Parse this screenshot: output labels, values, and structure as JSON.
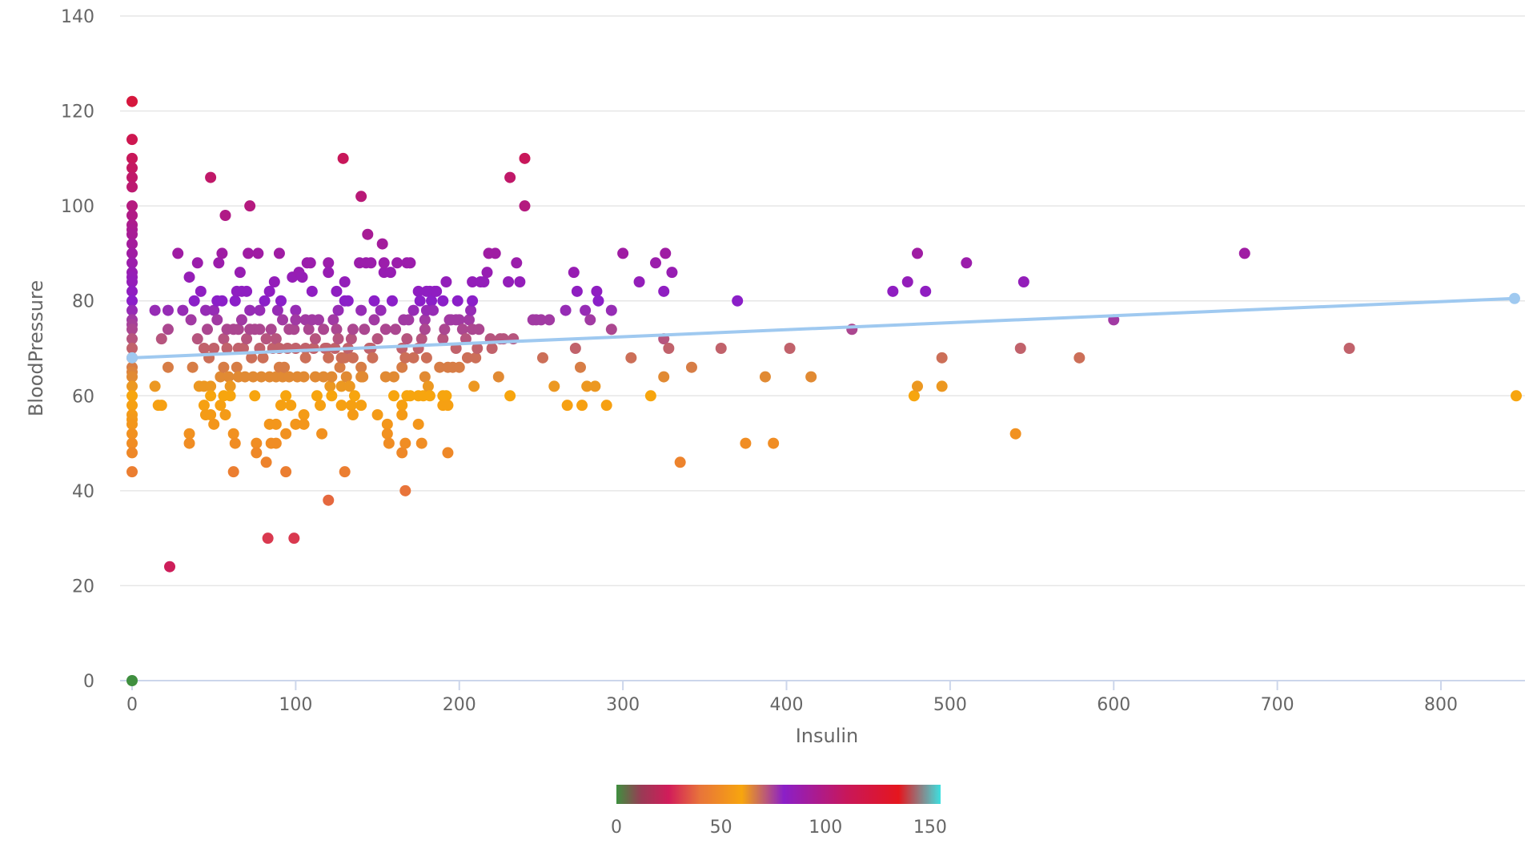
{
  "chart_data": {
    "type": "scatter",
    "xlabel": "Insulin",
    "ylabel": "BloodPressure",
    "xlim": [
      -10,
      850
    ],
    "ylim": [
      0,
      140
    ],
    "xticks": [
      0,
      100,
      200,
      300,
      400,
      500,
      600,
      700,
      800
    ],
    "yticks": [
      0,
      20,
      40,
      60,
      80,
      100,
      120,
      140
    ],
    "grid": true,
    "color_axis": {
      "ticks": [
        0,
        50,
        100,
        150
      ],
      "min": 0,
      "max": 155,
      "stops": [
        {
          "v": 0,
          "color": "#3f8f3f"
        },
        {
          "v": 12,
          "color": "#9a3a55"
        },
        {
          "v": 25,
          "color": "#d11c5a"
        },
        {
          "v": 40,
          "color": "#e8743a"
        },
        {
          "v": 60,
          "color": "#f7a50e"
        },
        {
          "v": 80,
          "color": "#8b1fc8"
        },
        {
          "v": 110,
          "color": "#c8175a"
        },
        {
          "v": 135,
          "color": "#e5161e"
        },
        {
          "v": 155,
          "color": "#3de0e0"
        }
      ]
    },
    "trendline": {
      "points": [
        [
          0,
          68
        ],
        [
          845,
          80.5
        ]
      ],
      "color": "#9fc9f0"
    },
    "points": [
      [
        0,
        0
      ],
      [
        0,
        122
      ],
      [
        0,
        114
      ],
      [
        0,
        110
      ],
      [
        0,
        108
      ],
      [
        0,
        106
      ],
      [
        0,
        104
      ],
      [
        0,
        100
      ],
      [
        0,
        98
      ],
      [
        0,
        96
      ],
      [
        0,
        95
      ],
      [
        0,
        94
      ],
      [
        0,
        92
      ],
      [
        0,
        90
      ],
      [
        0,
        88
      ],
      [
        0,
        86
      ],
      [
        0,
        85
      ],
      [
        0,
        84
      ],
      [
        0,
        82
      ],
      [
        0,
        80
      ],
      [
        0,
        78
      ],
      [
        0,
        76
      ],
      [
        0,
        75
      ],
      [
        0,
        74
      ],
      [
        0,
        72
      ],
      [
        0,
        70
      ],
      [
        0,
        68
      ],
      [
        0,
        66
      ],
      [
        0,
        65
      ],
      [
        0,
        64
      ],
      [
        0,
        62
      ],
      [
        0,
        60
      ],
      [
        0,
        58
      ],
      [
        0,
        56
      ],
      [
        0,
        55
      ],
      [
        0,
        54
      ],
      [
        0,
        52
      ],
      [
        0,
        50
      ],
      [
        0,
        48
      ],
      [
        0,
        44
      ],
      [
        14,
        78
      ],
      [
        14,
        62
      ],
      [
        16,
        58
      ],
      [
        18,
        72
      ],
      [
        18,
        58
      ],
      [
        22,
        66
      ],
      [
        22,
        74
      ],
      [
        22,
        78
      ],
      [
        23,
        24
      ],
      [
        28,
        90
      ],
      [
        31,
        78
      ],
      [
        35,
        85
      ],
      [
        35,
        52
      ],
      [
        35,
        50
      ],
      [
        36,
        76
      ],
      [
        37,
        66
      ],
      [
        38,
        80
      ],
      [
        40,
        88
      ],
      [
        40,
        72
      ],
      [
        41,
        62
      ],
      [
        42,
        82
      ],
      [
        44,
        70
      ],
      [
        44,
        62
      ],
      [
        44,
        58
      ],
      [
        45,
        78
      ],
      [
        45,
        56
      ],
      [
        46,
        74
      ],
      [
        47,
        68
      ],
      [
        48,
        106
      ],
      [
        48,
        62
      ],
      [
        48,
        60
      ],
      [
        48,
        56
      ],
      [
        50,
        78
      ],
      [
        50,
        70
      ],
      [
        50,
        54
      ],
      [
        52,
        76
      ],
      [
        52,
        80
      ],
      [
        53,
        88
      ],
      [
        54,
        58
      ],
      [
        54,
        64
      ],
      [
        55,
        90
      ],
      [
        55,
        80
      ],
      [
        56,
        72
      ],
      [
        56,
        66
      ],
      [
        56,
        60
      ],
      [
        57,
        98
      ],
      [
        57,
        56
      ],
      [
        58,
        74
      ],
      [
        58,
        70
      ],
      [
        59,
        64
      ],
      [
        60,
        62
      ],
      [
        60,
        60
      ],
      [
        62,
        74
      ],
      [
        62,
        44
      ],
      [
        62,
        52
      ],
      [
        63,
        50
      ],
      [
        63,
        80
      ],
      [
        64,
        82
      ],
      [
        64,
        66
      ],
      [
        65,
        74
      ],
      [
        65,
        70
      ],
      [
        65,
        64
      ],
      [
        66,
        86
      ],
      [
        67,
        82
      ],
      [
        67,
        76
      ],
      [
        68,
        70
      ],
      [
        69,
        64
      ],
      [
        70,
        82
      ],
      [
        70,
        72
      ],
      [
        71,
        90
      ],
      [
        72,
        100
      ],
      [
        72,
        78
      ],
      [
        72,
        74
      ],
      [
        73,
        68
      ],
      [
        74,
        64
      ],
      [
        75,
        60
      ],
      [
        75,
        74
      ],
      [
        76,
        50
      ],
      [
        76,
        48
      ],
      [
        77,
        90
      ],
      [
        78,
        78
      ],
      [
        78,
        74
      ],
      [
        78,
        70
      ],
      [
        79,
        64
      ],
      [
        80,
        68
      ],
      [
        81,
        80
      ],
      [
        82,
        72
      ],
      [
        82,
        46
      ],
      [
        83,
        30
      ],
      [
        84,
        82
      ],
      [
        84,
        64
      ],
      [
        84,
        54
      ],
      [
        85,
        74
      ],
      [
        85,
        50
      ],
      [
        86,
        70
      ],
      [
        87,
        84
      ],
      [
        88,
        72
      ],
      [
        88,
        64
      ],
      [
        88,
        54
      ],
      [
        88,
        50
      ],
      [
        89,
        78
      ],
      [
        90,
        90
      ],
      [
        90,
        70
      ],
      [
        90,
        66
      ],
      [
        91,
        80
      ],
      [
        91,
        58
      ],
      [
        92,
        76
      ],
      [
        92,
        64
      ],
      [
        93,
        66
      ],
      [
        94,
        60
      ],
      [
        94,
        52
      ],
      [
        94,
        44
      ],
      [
        95,
        70
      ],
      [
        96,
        74
      ],
      [
        96,
        64
      ],
      [
        97,
        58
      ],
      [
        98,
        85
      ],
      [
        99,
        74
      ],
      [
        99,
        30
      ],
      [
        100,
        78
      ],
      [
        100,
        76
      ],
      [
        100,
        70
      ],
      [
        100,
        54
      ],
      [
        101,
        64
      ],
      [
        102,
        86
      ],
      [
        104,
        85
      ],
      [
        105,
        64
      ],
      [
        105,
        56
      ],
      [
        105,
        54
      ],
      [
        106,
        76
      ],
      [
        106,
        70
      ],
      [
        106,
        68
      ],
      [
        107,
        88
      ],
      [
        108,
        74
      ],
      [
        109,
        88
      ],
      [
        110,
        82
      ],
      [
        110,
        76
      ],
      [
        111,
        70
      ],
      [
        112,
        72
      ],
      [
        112,
        64
      ],
      [
        113,
        60
      ],
      [
        114,
        76
      ],
      [
        115,
        58
      ],
      [
        116,
        52
      ],
      [
        117,
        74
      ],
      [
        117,
        64
      ],
      [
        118,
        70
      ],
      [
        119,
        70
      ],
      [
        120,
        88
      ],
      [
        120,
        86
      ],
      [
        120,
        68
      ],
      [
        120,
        38
      ],
      [
        121,
        62
      ],
      [
        122,
        60
      ],
      [
        122,
        64
      ],
      [
        123,
        76
      ],
      [
        124,
        70
      ],
      [
        125,
        82
      ],
      [
        125,
        74
      ],
      [
        126,
        78
      ],
      [
        126,
        72
      ],
      [
        127,
        66
      ],
      [
        128,
        68
      ],
      [
        128,
        62
      ],
      [
        128,
        58
      ],
      [
        129,
        110
      ],
      [
        130,
        84
      ],
      [
        130,
        80
      ],
      [
        130,
        68
      ],
      [
        130,
        44
      ],
      [
        131,
        64
      ],
      [
        132,
        80
      ],
      [
        132,
        70
      ],
      [
        133,
        62
      ],
      [
        134,
        72
      ],
      [
        134,
        58
      ],
      [
        135,
        74
      ],
      [
        135,
        68
      ],
      [
        135,
        56
      ],
      [
        136,
        60
      ],
      [
        139,
        88
      ],
      [
        140,
        102
      ],
      [
        140,
        78
      ],
      [
        140,
        66
      ],
      [
        140,
        64
      ],
      [
        140,
        58
      ],
      [
        141,
        64
      ],
      [
        142,
        74
      ],
      [
        143,
        88
      ],
      [
        144,
        94
      ],
      [
        145,
        70
      ],
      [
        146,
        88
      ],
      [
        146,
        70
      ],
      [
        147,
        68
      ],
      [
        148,
        80
      ],
      [
        148,
        76
      ],
      [
        150,
        72
      ],
      [
        150,
        56
      ],
      [
        152,
        78
      ],
      [
        153,
        92
      ],
      [
        154,
        86
      ],
      [
        154,
        88
      ],
      [
        155,
        64
      ],
      [
        155,
        74
      ],
      [
        156,
        54
      ],
      [
        156,
        52
      ],
      [
        157,
        50
      ],
      [
        158,
        86
      ],
      [
        159,
        80
      ],
      [
        160,
        64
      ],
      [
        160,
        60
      ],
      [
        161,
        74
      ],
      [
        162,
        88
      ],
      [
        165,
        70
      ],
      [
        165,
        66
      ],
      [
        165,
        58
      ],
      [
        165,
        56
      ],
      [
        165,
        48
      ],
      [
        166,
        76
      ],
      [
        167,
        68
      ],
      [
        167,
        50
      ],
      [
        167,
        40
      ],
      [
        168,
        88
      ],
      [
        168,
        72
      ],
      [
        168,
        60
      ],
      [
        169,
        76
      ],
      [
        170,
        60
      ],
      [
        170,
        88
      ],
      [
        172,
        78
      ],
      [
        172,
        68
      ],
      [
        175,
        82
      ],
      [
        175,
        70
      ],
      [
        175,
        60
      ],
      [
        175,
        54
      ],
      [
        176,
        80
      ],
      [
        177,
        72
      ],
      [
        177,
        50
      ],
      [
        178,
        60
      ],
      [
        179,
        76
      ],
      [
        179,
        74
      ],
      [
        179,
        64
      ],
      [
        180,
        82
      ],
      [
        180,
        78
      ],
      [
        180,
        68
      ],
      [
        181,
        62
      ],
      [
        182,
        82
      ],
      [
        182,
        60
      ],
      [
        183,
        80
      ],
      [
        184,
        78
      ],
      [
        185,
        82
      ],
      [
        186,
        82
      ],
      [
        188,
        66
      ],
      [
        190,
        80
      ],
      [
        190,
        72
      ],
      [
        190,
        60
      ],
      [
        190,
        58
      ],
      [
        191,
        74
      ],
      [
        192,
        84
      ],
      [
        192,
        60
      ],
      [
        193,
        66
      ],
      [
        193,
        58
      ],
      [
        193,
        48
      ],
      [
        194,
        76
      ],
      [
        195,
        76
      ],
      [
        196,
        66
      ],
      [
        198,
        76
      ],
      [
        198,
        70
      ],
      [
        199,
        80
      ],
      [
        200,
        66
      ],
      [
        200,
        76
      ],
      [
        202,
        74
      ],
      [
        204,
        72
      ],
      [
        205,
        68
      ],
      [
        206,
        76
      ],
      [
        207,
        78
      ],
      [
        208,
        84
      ],
      [
        208,
        80
      ],
      [
        208,
        74
      ],
      [
        209,
        62
      ],
      [
        210,
        68
      ],
      [
        211,
        70
      ],
      [
        212,
        74
      ],
      [
        213,
        84
      ],
      [
        215,
        84
      ],
      [
        217,
        86
      ],
      [
        218,
        90
      ],
      [
        219,
        72
      ],
      [
        220,
        70
      ],
      [
        222,
        90
      ],
      [
        224,
        64
      ],
      [
        225,
        72
      ],
      [
        227,
        72
      ],
      [
        230,
        84
      ],
      [
        231,
        106
      ],
      [
        231,
        60
      ],
      [
        233,
        72
      ],
      [
        235,
        88
      ],
      [
        237,
        84
      ],
      [
        240,
        110
      ],
      [
        240,
        100
      ],
      [
        245,
        76
      ],
      [
        247,
        76
      ],
      [
        250,
        76
      ],
      [
        251,
        68
      ],
      [
        255,
        76
      ],
      [
        258,
        62
      ],
      [
        265,
        78
      ],
      [
        266,
        58
      ],
      [
        270,
        86
      ],
      [
        271,
        70
      ],
      [
        272,
        82
      ],
      [
        274,
        66
      ],
      [
        275,
        58
      ],
      [
        277,
        78
      ],
      [
        278,
        62
      ],
      [
        280,
        76
      ],
      [
        283,
        62
      ],
      [
        284,
        82
      ],
      [
        285,
        80
      ],
      [
        290,
        58
      ],
      [
        293,
        78
      ],
      [
        293,
        74
      ],
      [
        300,
        90
      ],
      [
        305,
        68
      ],
      [
        310,
        84
      ],
      [
        317,
        60
      ],
      [
        320,
        88
      ],
      [
        325,
        82
      ],
      [
        325,
        72
      ],
      [
        325,
        64
      ],
      [
        326,
        90
      ],
      [
        328,
        70
      ],
      [
        330,
        86
      ],
      [
        335,
        46
      ],
      [
        342,
        66
      ],
      [
        360,
        70
      ],
      [
        370,
        80
      ],
      [
        375,
        50
      ],
      [
        387,
        64
      ],
      [
        392,
        50
      ],
      [
        415,
        64
      ],
      [
        402,
        70
      ],
      [
        440,
        74
      ],
      [
        465,
        82
      ],
      [
        474,
        84
      ],
      [
        478,
        60
      ],
      [
        480,
        90
      ],
      [
        480,
        62
      ],
      [
        485,
        82
      ],
      [
        495,
        68
      ],
      [
        495,
        62
      ],
      [
        510,
        88
      ],
      [
        540,
        52
      ],
      [
        543,
        70
      ],
      [
        545,
        84
      ],
      [
        579,
        68
      ],
      [
        600,
        76
      ],
      [
        680,
        90
      ],
      [
        744,
        70
      ],
      [
        846,
        60
      ]
    ]
  }
}
